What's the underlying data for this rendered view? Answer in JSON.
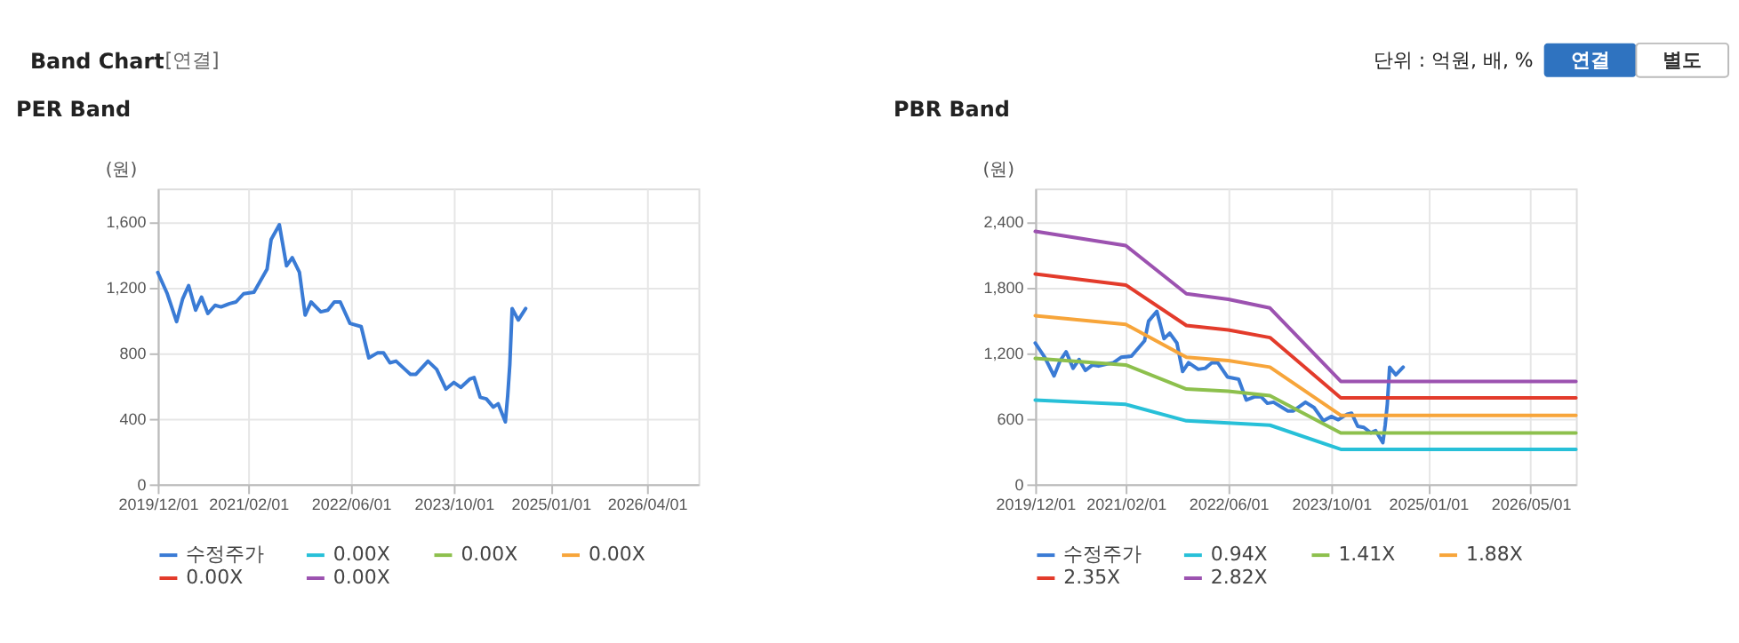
{
  "chart_data": [
    {
      "type": "line",
      "title": "PER Band",
      "ylabel": "(원)",
      "annotations": [
        "Band Chart",
        "[연결]",
        "단위 : 억원, 배, %",
        "연결",
        "별도"
      ],
      "xlim": [
        "2019-12-01",
        "2026-12-01"
      ],
      "xticks": [
        {
          "value": "2019-12-01",
          "label": "2019/12/01"
        },
        {
          "value": "2021-02-01",
          "label": "2021/02/01"
        },
        {
          "value": "2022-06-01",
          "label": "2022/06/01"
        },
        {
          "value": "2023-10-01",
          "label": "2023/10/01"
        },
        {
          "value": "2025-01-01",
          "label": "2025/01/01"
        },
        {
          "value": "2026-04-01",
          "label": "2026/04/01"
        }
      ],
      "ylim": [
        0,
        1800
      ],
      "yticks": [
        0,
        {
          "value": 400,
          "label": "400"
        },
        {
          "value": 800,
          "label": "800"
        },
        {
          "value": 1200,
          "label": "1,200"
        },
        {
          "value": 1600,
          "label": "1,600"
        }
      ],
      "grid": true,
      "legend": "bottom",
      "marker": "none",
      "line_style": "solid",
      "series": [
        {
          "name": "수정주가",
          "color": "#3a7bd5",
          "x": [
            "2019-12-01",
            "2020-01-15",
            "2020-02-28",
            "2020-03-28",
            "2020-04-25",
            "2020-05-28",
            "2020-06-25",
            "2020-07-25",
            "2020-08-28",
            "2020-09-25",
            "2020-11-05",
            "2020-12-05",
            "2021-01-10",
            "2021-02-28",
            "2021-05-01",
            "2021-05-20",
            "2021-06-28",
            "2021-08-01",
            "2021-08-28",
            "2021-10-01",
            "2021-10-28",
            "2021-11-25",
            "2022-01-10",
            "2022-02-12",
            "2022-03-15",
            "2022-04-12",
            "2022-05-28",
            "2022-07-20",
            "2022-08-25",
            "2022-10-05",
            "2022-11-03",
            "2022-12-03",
            "2023-01-01",
            "2023-02-12",
            "2023-03-10",
            "2023-04-05",
            "2023-06-01",
            "2023-07-12",
            "2023-08-25",
            "2023-10-01",
            "2023-11-03",
            "2023-12-15",
            "2024-01-05",
            "2024-02-03",
            "2024-03-03",
            "2024-04-05",
            "2024-04-28",
            "2024-06-01",
            "2024-06-12",
            "2024-06-22",
            "2024-07-03",
            "2024-08-01",
            "2024-09-05"
          ],
          "values": [
            1290,
            1160,
            990,
            1130,
            1210,
            1060,
            1140,
            1040,
            1090,
            1080,
            1100,
            1110,
            1160,
            1170,
            1310,
            1490,
            1580,
            1330,
            1380,
            1290,
            1030,
            1110,
            1050,
            1060,
            1110,
            1110,
            980,
            960,
            770,
            800,
            800,
            740,
            750,
            700,
            670,
            670,
            750,
            700,
            580,
            620,
            590,
            640,
            650,
            530,
            520,
            470,
            490,
            380,
            540,
            730,
            1070,
            1000,
            1070
          ]
        },
        {
          "name": "0.00X",
          "color": "#27c0d8"
        },
        {
          "name": "0.00X",
          "color": "#8dc04d"
        },
        {
          "name": "0.00X",
          "color": "#f7a53a"
        },
        {
          "name": "0.00X",
          "color": "#e33b2b"
        },
        {
          "name": "0.00X",
          "color": "#9c52b0"
        }
      ]
    },
    {
      "type": "line",
      "title": "PBR Band",
      "ylabel": "(원)",
      "xlim": [
        "2019-12-01",
        "2026-12-01"
      ],
      "xticks": [
        {
          "value": "2019-12-01",
          "label": "2019/12/01"
        },
        {
          "value": "2021-02-01",
          "label": "2021/02/01"
        },
        {
          "value": "2022-06-01",
          "label": "2022/06/01"
        },
        {
          "value": "2023-10-01",
          "label": "2023/10/01"
        },
        {
          "value": "2025-01-01",
          "label": "2025/01/01"
        },
        {
          "value": "2026-05-01",
          "label": "2026/05/01"
        }
      ],
      "ylim": [
        0,
        2700
      ],
      "yticks": [
        0,
        {
          "value": 600,
          "label": "600"
        },
        {
          "value": 1200,
          "label": "1,200"
        },
        {
          "value": 1800,
          "label": "1,800"
        },
        {
          "value": 2400,
          "label": "2,400"
        }
      ],
      "grid": true,
      "legend": "bottom",
      "marker": "none",
      "line_style": "solid",
      "series": [
        {
          "name": "수정주가",
          "color": "#3a7bd5",
          "x": [
            "2019-12-01",
            "2020-01-15",
            "2020-02-28",
            "2020-03-28",
            "2020-04-25",
            "2020-05-28",
            "2020-06-25",
            "2020-07-25",
            "2020-08-28",
            "2020-09-25",
            "2020-11-05",
            "2020-12-05",
            "2021-01-10",
            "2021-02-28",
            "2021-05-01",
            "2021-05-20",
            "2021-06-28",
            "2021-08-01",
            "2021-08-28",
            "2021-10-01",
            "2021-10-28",
            "2021-11-25",
            "2022-01-10",
            "2022-02-12",
            "2022-03-15",
            "2022-04-12",
            "2022-05-28",
            "2022-07-20",
            "2022-08-25",
            "2022-10-05",
            "2022-11-03",
            "2022-12-03",
            "2023-01-01",
            "2023-02-12",
            "2023-03-10",
            "2023-04-05",
            "2023-06-01",
            "2023-07-12",
            "2023-08-25",
            "2023-10-01",
            "2023-11-03",
            "2023-12-15",
            "2024-01-05",
            "2024-02-03",
            "2024-03-03",
            "2024-04-05",
            "2024-04-28",
            "2024-06-01",
            "2024-06-12",
            "2024-06-22",
            "2024-07-03",
            "2024-08-01",
            "2024-09-05"
          ],
          "values": [
            1290,
            1160,
            990,
            1130,
            1210,
            1060,
            1140,
            1040,
            1090,
            1080,
            1100,
            1110,
            1160,
            1170,
            1310,
            1490,
            1580,
            1330,
            1380,
            1290,
            1030,
            1110,
            1050,
            1060,
            1110,
            1110,
            980,
            960,
            770,
            800,
            800,
            740,
            750,
            700,
            670,
            670,
            750,
            700,
            580,
            620,
            590,
            640,
            650,
            530,
            520,
            470,
            490,
            380,
            540,
            730,
            1070,
            1000,
            1070
          ]
        },
        {
          "name": "0.94X",
          "color": "#27c0d8",
          "x": [
            "2019-12-01",
            "2021-02-01",
            "2021-11-15",
            "2022-06-01",
            "2022-12-15",
            "2023-11-15",
            "2026-12-01"
          ],
          "values": [
            770,
            730,
            580,
            560,
            540,
            320,
            320
          ]
        },
        {
          "name": "1.41X",
          "color": "#8dc04d",
          "x": [
            "2019-12-01",
            "2021-02-01",
            "2021-11-15",
            "2022-06-01",
            "2022-12-15",
            "2023-11-15",
            "2026-12-01"
          ],
          "values": [
            1150,
            1090,
            870,
            850,
            810,
            470,
            470
          ]
        },
        {
          "name": "1.88X",
          "color": "#f7a53a",
          "x": [
            "2019-12-01",
            "2021-02-01",
            "2021-11-15",
            "2022-06-01",
            "2022-12-15",
            "2023-11-15",
            "2026-12-01"
          ],
          "values": [
            1540,
            1460,
            1160,
            1130,
            1070,
            630,
            630
          ]
        },
        {
          "name": "2.35X",
          "color": "#e33b2b",
          "x": [
            "2019-12-01",
            "2021-02-01",
            "2021-11-15",
            "2022-06-01",
            "2022-12-15",
            "2023-11-15",
            "2026-12-01"
          ],
          "values": [
            1920,
            1820,
            1450,
            1410,
            1340,
            790,
            790
          ]
        },
        {
          "name": "2.82X",
          "color": "#9c52b0",
          "x": [
            "2019-12-01",
            "2021-02-01",
            "2021-11-15",
            "2022-06-01",
            "2022-12-15",
            "2023-11-15",
            "2026-12-01"
          ],
          "values": [
            2310,
            2180,
            1740,
            1690,
            1610,
            940,
            940
          ]
        }
      ]
    }
  ]
}
